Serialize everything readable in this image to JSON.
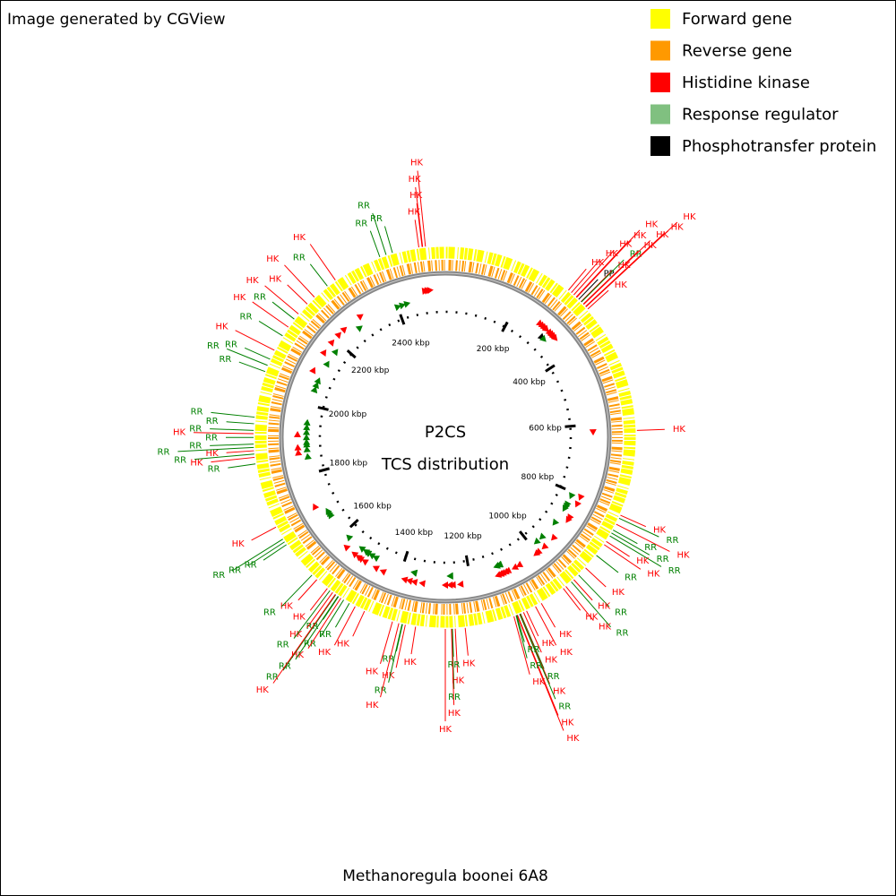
{
  "header": "Image generated by CGView",
  "legend": [
    {
      "label": "Forward gene",
      "color": "#ffff00"
    },
    {
      "label": "Reverse gene",
      "color": "#ff9900"
    },
    {
      "label": "Histidine kinase",
      "color": "#ff0000"
    },
    {
      "label": "Response regulator",
      "color": "#80c080"
    },
    {
      "label": "Phosphotransfer protein",
      "color": "#000000"
    }
  ],
  "title": [
    "P2CS",
    "TCS distribution"
  ],
  "footer": "Methanoregula boonei 6A8",
  "scale": {
    "start": 0,
    "end": 2542
  },
  "ticks": [
    {
      "value": 200,
      "label": "200 kbp"
    },
    {
      "value": 400,
      "label": "400 kbp"
    },
    {
      "value": 600,
      "label": "600 kbp"
    },
    {
      "value": 800,
      "label": "800 kbp"
    },
    {
      "value": 1000,
      "label": "1000 kbp"
    },
    {
      "value": 1200,
      "label": "1200 kbp"
    },
    {
      "value": 1400,
      "label": "1400 kbp"
    },
    {
      "value": 1600,
      "label": "1600 kbp"
    },
    {
      "value": 1800,
      "label": "1800 kbp"
    },
    {
      "value": 2000,
      "label": "2000 kbp"
    },
    {
      "value": 2200,
      "label": "2200 kbp"
    },
    {
      "value": 2400,
      "label": "2400 kbp"
    }
  ],
  "feature_colors": {
    "HK": "#ff0000",
    "RR": "#008000",
    "PP": "#000000"
  },
  "features": [
    {
      "label": "RR",
      "position": 2401
    },
    {
      "label": "RR",
      "position": 2415
    },
    {
      "label": "RR",
      "position": 2429
    },
    {
      "label": "HK",
      "position": 2486
    },
    {
      "label": "HK",
      "position": 2493
    },
    {
      "label": "HK",
      "position": 2494
    },
    {
      "label": "HK",
      "position": 2500
    },
    {
      "label": "HK",
      "position": 282
    },
    {
      "label": "HK",
      "position": 290
    },
    {
      "label": "HK",
      "position": 297
    },
    {
      "label": "HK",
      "position": 304
    },
    {
      "label": "HK",
      "position": 305
    },
    {
      "label": "PP",
      "position": 311
    },
    {
      "label": "HK",
      "position": 318
    },
    {
      "label": "RR",
      "position": 319
    },
    {
      "label": "HK",
      "position": 325
    },
    {
      "label": "HK",
      "position": 326
    },
    {
      "label": "HK",
      "position": 332
    },
    {
      "label": "HK",
      "position": 333
    },
    {
      "label": "HK",
      "position": 339
    },
    {
      "label": "HK",
      "position": 621
    },
    {
      "label": "HK",
      "position": 805
    },
    {
      "label": "RR",
      "position": 812
    },
    {
      "label": "HK",
      "position": 826
    },
    {
      "label": "RR",
      "position": 840
    },
    {
      "label": "RR",
      "position": 847
    },
    {
      "label": "RR",
      "position": 854
    },
    {
      "label": "HK",
      "position": 868
    },
    {
      "label": "HK",
      "position": 876
    },
    {
      "label": "RR",
      "position": 904
    },
    {
      "label": "HK",
      "position": 939
    },
    {
      "label": "RR",
      "position": 960
    },
    {
      "label": "HK",
      "position": 974
    },
    {
      "label": "RR",
      "position": 981
    },
    {
      "label": "HK",
      "position": 996
    },
    {
      "label": "HK",
      "position": 1003
    },
    {
      "label": "HK",
      "position": 1059
    },
    {
      "label": "HK",
      "position": 1073
    },
    {
      "label": "HK",
      "position": 1094
    },
    {
      "label": "HK",
      "position": 1101
    },
    {
      "label": "RR",
      "position": 1108
    },
    {
      "label": "HK",
      "position": 1109
    },
    {
      "label": "RR",
      "position": 1110
    },
    {
      "label": "HK",
      "position": 1115
    },
    {
      "label": "HK",
      "position": 1116
    },
    {
      "label": "RR",
      "position": 1117
    },
    {
      "label": "RR",
      "position": 1118
    },
    {
      "label": "HK",
      "position": 1123
    },
    {
      "label": "HK",
      "position": 1229
    },
    {
      "label": "HK",
      "position": 1250
    },
    {
      "label": "RR",
      "position": 1256
    },
    {
      "label": "RR",
      "position": 1257
    },
    {
      "label": "HK",
      "position": 1258
    },
    {
      "label": "HK",
      "position": 1271
    },
    {
      "label": "HK",
      "position": 1334
    },
    {
      "label": "HK",
      "position": 1356
    },
    {
      "label": "RR",
      "position": 1362
    },
    {
      "label": "RR",
      "position": 1363
    },
    {
      "label": "HK",
      "position": 1370
    },
    {
      "label": "HK",
      "position": 1384
    },
    {
      "label": "HK",
      "position": 1447
    },
    {
      "label": "HK",
      "position": 1469
    },
    {
      "label": "RR",
      "position": 1483
    },
    {
      "label": "RR",
      "position": 1497
    },
    {
      "label": "HK",
      "position": 1504
    },
    {
      "label": "RR",
      "position": 1510
    },
    {
      "label": "RR",
      "position": 1511
    },
    {
      "label": "RR",
      "position": 1517
    },
    {
      "label": "HK",
      "position": 1518
    },
    {
      "label": "HK",
      "position": 1525
    },
    {
      "label": "RR",
      "position": 1532
    },
    {
      "label": "HK",
      "position": 1539
    },
    {
      "label": "HK",
      "position": 1568
    },
    {
      "label": "RR",
      "position": 1582
    },
    {
      "label": "RR",
      "position": 1666
    },
    {
      "label": "RR",
      "position": 1673
    },
    {
      "label": "RR",
      "position": 1680
    },
    {
      "label": "HK",
      "position": 1709
    },
    {
      "label": "RR",
      "position": 1850
    },
    {
      "label": "HK",
      "position": 1864
    },
    {
      "label": "RR",
      "position": 1871
    },
    {
      "label": "HK",
      "position": 1878
    },
    {
      "label": "RR",
      "position": 1885
    },
    {
      "label": "RR",
      "position": 1892
    },
    {
      "label": "RR",
      "position": 1906
    },
    {
      "label": "HK",
      "position": 1914
    },
    {
      "label": "RR",
      "position": 1921
    },
    {
      "label": "RR",
      "position": 1935
    },
    {
      "label": "RR",
      "position": 1949
    },
    {
      "label": "RR",
      "position": 2048
    },
    {
      "label": "RR",
      "position": 2062
    },
    {
      "label": "RR",
      "position": 2076
    },
    {
      "label": "HK",
      "position": 2097
    },
    {
      "label": "RR",
      "position": 2132
    },
    {
      "label": "HK",
      "position": 2154
    },
    {
      "label": "RR",
      "position": 2175
    },
    {
      "label": "HK",
      "position": 2189
    },
    {
      "label": "HK",
      "position": 2217
    },
    {
      "label": "HK",
      "position": 2238
    },
    {
      "label": "RR",
      "position": 2274
    },
    {
      "label": "HK",
      "position": 2295
    }
  ]
}
